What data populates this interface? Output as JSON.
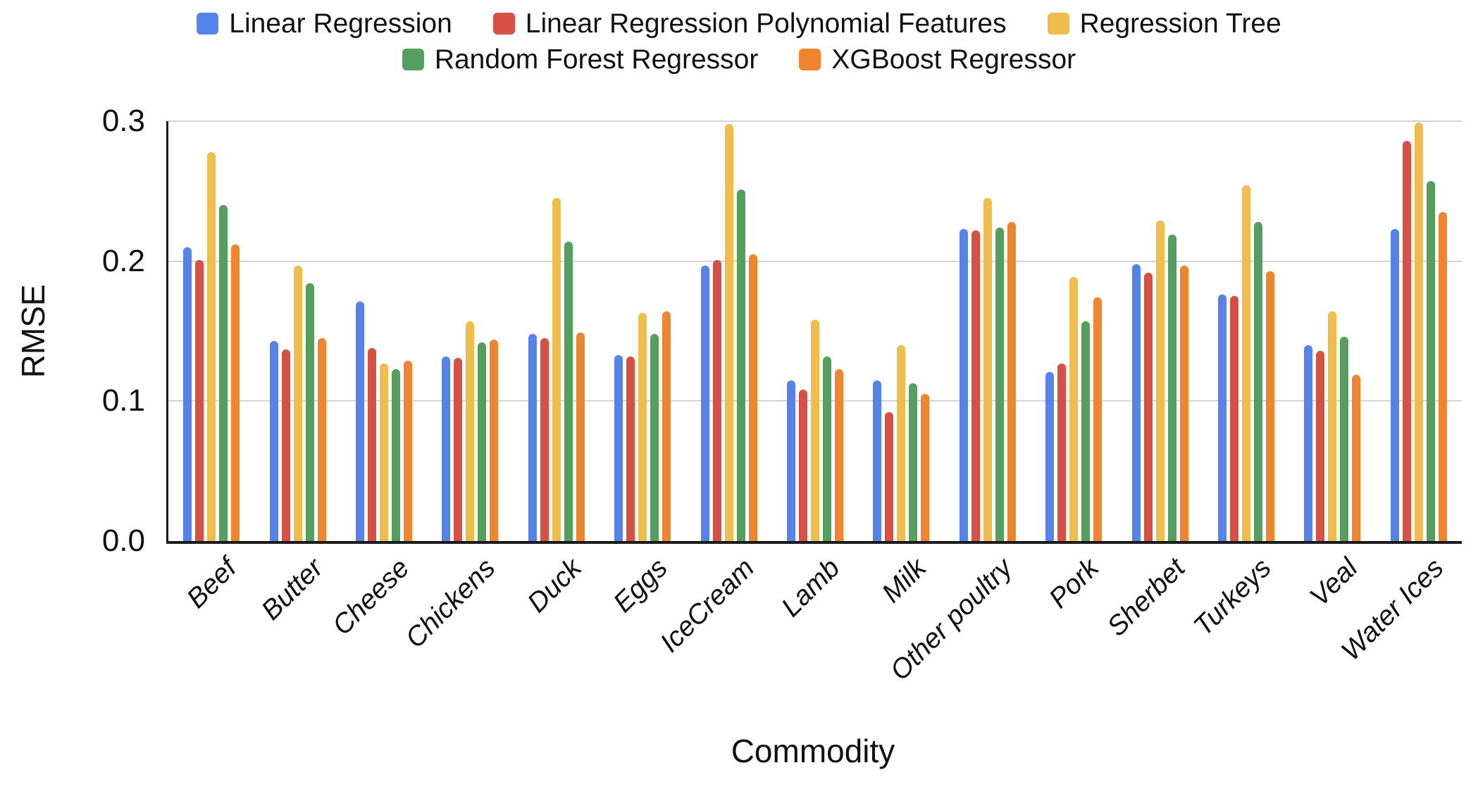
{
  "chart_data": {
    "type": "bar",
    "title": "",
    "xlabel": "Commodity",
    "ylabel": "RMSE",
    "ylim": [
      0,
      0.3
    ],
    "yticks": [
      0.3,
      0.2,
      0.1,
      0.0
    ],
    "ytick_labels": [
      "0.3",
      "0.2",
      "0.1",
      "0.0"
    ],
    "grid": true,
    "legend_position": "top",
    "colors": {
      "axis": "#1a1a1a",
      "grid": "#d4d4d4",
      "text": "#111111"
    },
    "categories": [
      "Beef",
      "Butter",
      "Cheese",
      "Chickens",
      "Duck",
      "Eggs",
      "IceCream",
      "Lamb",
      "Milk",
      "Other poultry",
      "Pork",
      "Sherbet",
      "Turkeys",
      "Veal",
      "Water Ices"
    ],
    "series": [
      {
        "name": "Linear Regression",
        "color": "#5582EB",
        "values": [
          0.21,
          0.143,
          0.171,
          0.132,
          0.148,
          0.133,
          0.197,
          0.115,
          0.115,
          0.223,
          0.121,
          0.198,
          0.176,
          0.14,
          0.223
        ]
      },
      {
        "name": "Linear Regression Polynomial Features",
        "color": "#D75043",
        "values": [
          0.201,
          0.137,
          0.138,
          0.131,
          0.145,
          0.132,
          0.201,
          0.108,
          0.092,
          0.222,
          0.127,
          0.192,
          0.175,
          0.136,
          0.286
        ]
      },
      {
        "name": "Regression Tree",
        "color": "#F0BD4A",
        "values": [
          0.278,
          0.197,
          0.127,
          0.157,
          0.245,
          0.163,
          0.298,
          0.158,
          0.14,
          0.245,
          0.189,
          0.229,
          0.254,
          0.164,
          0.299
        ]
      },
      {
        "name": "Random Forest Regressor",
        "color": "#559F5E",
        "values": [
          0.24,
          0.184,
          0.123,
          0.142,
          0.214,
          0.148,
          0.251,
          0.132,
          0.113,
          0.224,
          0.157,
          0.219,
          0.228,
          0.146,
          0.257
        ]
      },
      {
        "name": "XGBoost Regressor",
        "color": "#F0852D",
        "values": [
          0.212,
          0.145,
          0.129,
          0.144,
          0.149,
          0.164,
          0.205,
          0.123,
          0.105,
          0.228,
          0.174,
          0.197,
          0.193,
          0.119,
          0.235
        ]
      }
    ]
  }
}
